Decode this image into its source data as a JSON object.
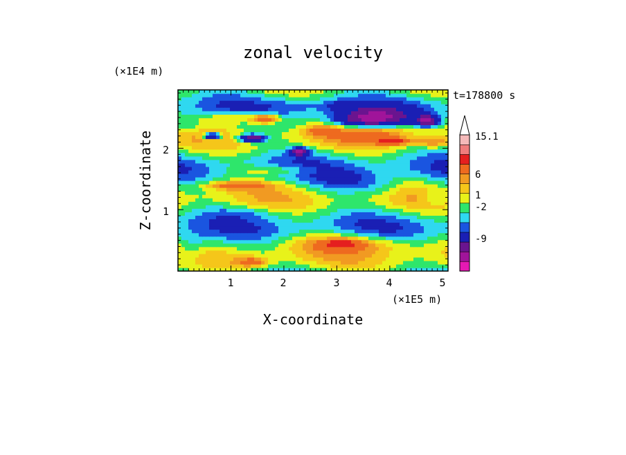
{
  "chart_data": {
    "type": "heatmap",
    "title": "zonal velocity",
    "xlabel": "X-coordinate",
    "ylabel": "Z-coordinate",
    "x_multiplier": "(×1E5 m)",
    "y_multiplier": "(×1E4 m)",
    "time_label": "t=178800 s",
    "xlim": [
      0,
      5.1
    ],
    "ylim": [
      0,
      2.95
    ],
    "x_ticks": [
      "1",
      "2",
      "3",
      "4",
      "5"
    ],
    "y_ticks": [
      "1",
      "2"
    ],
    "colorbar": {
      "labels": [
        "15.1",
        "6",
        "1",
        "-2",
        "-9"
      ],
      "levels": [
        -15,
        -12,
        -9,
        -6,
        -3,
        -2,
        -1,
        0,
        1,
        2,
        3,
        6,
        9,
        12,
        15.1
      ],
      "colors": [
        "#e619b3",
        "#a0149a",
        "#6a148f",
        "#1a1fb4",
        "#1a55e0",
        "#2fd8f0",
        "#2ee66b",
        "#e8f21a",
        "#f5c61a",
        "#f19a22",
        "#ee6a1f",
        "#e51f1f",
        "#f07c7c",
        "#f5b9b9"
      ]
    },
    "field_blobs": [
      {
        "x": 3.65,
        "z": 2.48,
        "rx": 0.65,
        "rz": 0.16,
        "rot": 15,
        "v": -10
      },
      {
        "x": 3.7,
        "z": 2.3,
        "rx": 0.75,
        "rz": 0.18,
        "rot": 15,
        "v": 4
      },
      {
        "x": 4.05,
        "z": 2.12,
        "rx": 0.3,
        "rz": 0.05,
        "rot": 10,
        "v": 7
      },
      {
        "x": 1.1,
        "z": 2.5,
        "rx": 0.6,
        "rz": 0.1,
        "rot": 0,
        "v": 3
      },
      {
        "x": 1.65,
        "z": 2.48,
        "rx": 0.25,
        "rz": 0.07,
        "rot": 0,
        "v": 6
      },
      {
        "x": 0.2,
        "z": 2.35,
        "rx": 0.25,
        "rz": 0.12,
        "rot": 0,
        "v": -2
      },
      {
        "x": 1.4,
        "z": 2.17,
        "rx": 0.25,
        "rz": 0.06,
        "rot": 0,
        "v": -9
      },
      {
        "x": 0.65,
        "z": 2.2,
        "rx": 0.15,
        "rz": 0.05,
        "rot": 0,
        "v": -9
      },
      {
        "x": 2.3,
        "z": 1.95,
        "rx": 0.15,
        "rz": 0.06,
        "rot": 0,
        "v": -9
      },
      {
        "x": 4.7,
        "z": 2.45,
        "rx": 0.2,
        "rz": 0.08,
        "rot": 0,
        "v": -9
      },
      {
        "x": 3.1,
        "z": 2.7,
        "rx": 0.3,
        "rz": 0.08,
        "rot": 0,
        "v": -2
      },
      {
        "x": 2.7,
        "z": 2.3,
        "rx": 0.3,
        "rz": 0.08,
        "rot": 0,
        "v": 3
      },
      {
        "x": 1.9,
        "z": 1.65,
        "rx": 0.8,
        "rz": 0.08,
        "rot": 0,
        "v": 2
      },
      {
        "x": 1.1,
        "z": 1.4,
        "rx": 0.6,
        "rz": 0.07,
        "rot": 0,
        "v": 4
      },
      {
        "x": 3.3,
        "z": 1.45,
        "rx": 0.7,
        "rz": 0.2,
        "rot": 0,
        "v": -2
      },
      {
        "x": 3.9,
        "z": 1.35,
        "rx": 0.4,
        "rz": 0.15,
        "rot": 0,
        "v": -1
      },
      {
        "x": 1.3,
        "z": 0.95,
        "rx": 0.7,
        "rz": 0.1,
        "rot": 10,
        "v": -1
      },
      {
        "x": 0.25,
        "z": 0.35,
        "rx": 0.35,
        "rz": 0.25,
        "rot": 0,
        "v": -2
      },
      {
        "x": 3.25,
        "z": 0.45,
        "rx": 1.1,
        "rz": 0.15,
        "rot": 0,
        "v": 3
      },
      {
        "x": 3.1,
        "z": 0.45,
        "rx": 0.3,
        "rz": 0.06,
        "rot": 0,
        "v": 6
      },
      {
        "x": 1.4,
        "z": 0.15,
        "rx": 0.3,
        "rz": 0.08,
        "rot": 0,
        "v": 4
      },
      {
        "x": 4.85,
        "z": 1.2,
        "rx": 0.25,
        "rz": 0.12,
        "rot": 0,
        "v": -2
      },
      {
        "x": 2.3,
        "z": 2.7,
        "rx": 0.6,
        "rz": 0.1,
        "rot": 0,
        "v": -1
      },
      {
        "x": 4.8,
        "z": 2.1,
        "rx": 0.3,
        "rz": 0.08,
        "rot": 0,
        "v": 3
      }
    ]
  }
}
